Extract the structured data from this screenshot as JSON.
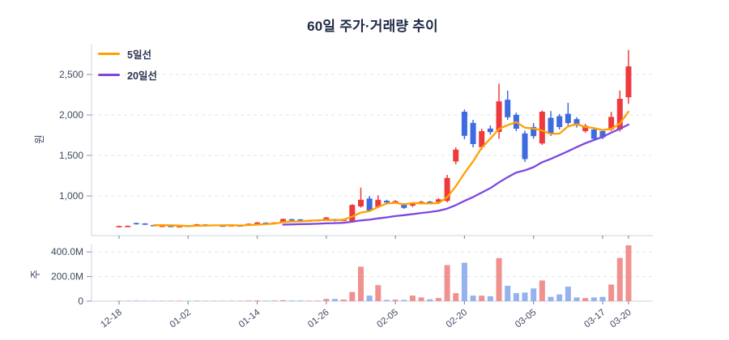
{
  "title": "60일 주가·거래량 추이",
  "legend": [
    {
      "label": "5일선",
      "color": "#ffa000"
    },
    {
      "label": "20일선",
      "color": "#7d47e0"
    }
  ],
  "colors": {
    "candle_up": "#ee3a3c",
    "candle_down": "#3e6be0",
    "volume_up": "#f0918f",
    "volume_down": "#95b2ee",
    "ma5": "#ffa000",
    "ma20": "#7d47e0",
    "axis_line": "#d8dce3",
    "grid_line": "#e6e9ee",
    "tick_mark": "#8891a5",
    "tick_text": "#3e4961",
    "title_text": "#1e2a45"
  },
  "price_axis": {
    "unit_label": "원",
    "ticks": [
      {
        "value": 1000,
        "label": "1,000"
      },
      {
        "value": 1500,
        "label": "1,500"
      },
      {
        "value": 2000,
        "label": "2,000"
      },
      {
        "value": 2500,
        "label": "2,500"
      }
    ]
  },
  "volume_axis": {
    "unit_label": "주",
    "ticks": [
      {
        "value": 0,
        "label": "0"
      },
      {
        "value": 200,
        "label": "200.0M"
      },
      {
        "value": 400,
        "label": "400.0M"
      }
    ]
  },
  "x_axis": {
    "ticks": [
      {
        "index": 0,
        "label": "12-18"
      },
      {
        "index": 8,
        "label": "01-02"
      },
      {
        "index": 16,
        "label": "01-14"
      },
      {
        "index": 24,
        "label": "01-26"
      },
      {
        "index": 32,
        "label": "02-05"
      },
      {
        "index": 40,
        "label": "02-20"
      },
      {
        "index": 48,
        "label": "03-05"
      },
      {
        "index": 56,
        "label": "03-17"
      },
      {
        "index": 59,
        "label": "03-20"
      }
    ]
  },
  "chart_data": {
    "type": "candlestick-with-volume",
    "title": "60일 주가·거래량 추이",
    "price_ylabel": "원",
    "volume_ylabel": "주",
    "price_ylim": [
      520,
      2850
    ],
    "volume_ylim_millions": [
      0,
      470
    ],
    "grid": "dashed-horizontal",
    "legend_position": "top-left",
    "open": [
      618,
      622,
      665,
      660,
      640,
      622,
      630,
      618,
      632,
      638,
      648,
      636,
      634,
      630,
      636,
      642,
      655,
      670,
      660,
      680,
      712,
      710,
      688,
      695,
      705,
      712,
      694,
      680,
      870,
      968,
      866,
      940,
      920,
      902,
      880,
      908,
      930,
      925,
      938,
      1425,
      2040,
      1902,
      1602,
      1832,
      1790,
      2188,
      2002,
      1772,
      1852,
      1648,
      1965,
      1985,
      2015,
      1948,
      1800,
      1820,
      1800,
      1822,
      1820,
      2218
    ],
    "close": [
      628,
      630,
      650,
      647,
      633,
      632,
      625,
      627,
      625,
      650,
      638,
      642,
      628,
      638,
      630,
      656,
      672,
      658,
      672,
      715,
      698,
      684,
      697,
      703,
      733,
      690,
      706,
      888,
      952,
      820,
      952,
      918,
      935,
      852,
      905,
      928,
      912,
      958,
      1222,
      1572,
      1742,
      1640,
      1800,
      1788,
      2168,
      1972,
      1830,
      1455,
      1738,
      2040,
      1768,
      1850,
      1900,
      1870,
      1866,
      1705,
      1722,
      1975,
      2200,
      2600
    ],
    "high": [
      632,
      635,
      670,
      663,
      645,
      636,
      634,
      630,
      636,
      654,
      652,
      646,
      638,
      642,
      640,
      660,
      678,
      674,
      676,
      722,
      718,
      714,
      702,
      708,
      740,
      718,
      712,
      900,
      1103,
      1000,
      1007,
      952,
      948,
      912,
      915,
      940,
      938,
      972,
      1260,
      1600,
      2068,
      1940,
      1830,
      1870,
      2388,
      2300,
      2030,
      1805,
      1900,
      2055,
      2048,
      2010,
      2150,
      1972,
      1890,
      1838,
      1822,
      2038,
      2302,
      2802
    ],
    "low": [
      612,
      618,
      645,
      642,
      628,
      618,
      620,
      614,
      621,
      634,
      633,
      631,
      623,
      626,
      625,
      638,
      650,
      652,
      655,
      674,
      690,
      678,
      682,
      690,
      700,
      684,
      688,
      672,
      855,
      805,
      850,
      900,
      908,
      840,
      862,
      898,
      900,
      916,
      920,
      1390,
      1700,
      1600,
      1570,
      1755,
      1705,
      1940,
      1800,
      1420,
      1705,
      1630,
      1740,
      1820,
      1872,
      1845,
      1780,
      1688,
      1700,
      1800,
      1795,
      2138
    ],
    "volume_millions": [
      2,
      2,
      4,
      3,
      2,
      2,
      2,
      2,
      3,
      4,
      3,
      2,
      2,
      2,
      2,
      5,
      6,
      4,
      5,
      8,
      5,
      5,
      4,
      4,
      18,
      18,
      13,
      75,
      280,
      45,
      130,
      10,
      12,
      10,
      45,
      30,
      15,
      25,
      293,
      65,
      312,
      45,
      45,
      40,
      350,
      125,
      65,
      70,
      103,
      168,
      35,
      55,
      118,
      30,
      25,
      30,
      35,
      135,
      351,
      454
    ],
    "overlays": [
      {
        "name": "5일선",
        "type": "line",
        "derivation": "5-day simple moving average of close"
      },
      {
        "name": "20일선",
        "type": "line",
        "derivation": "20-day simple moving average of close"
      }
    ]
  }
}
